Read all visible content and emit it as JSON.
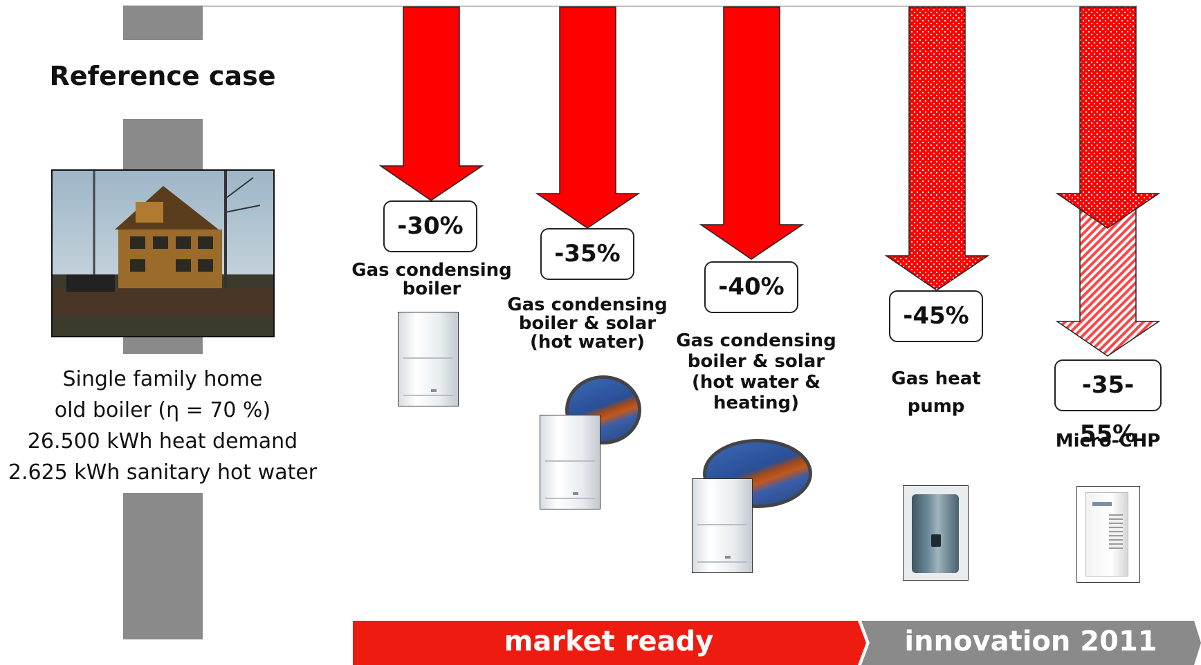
{
  "reference": {
    "title": "Reference case",
    "lines": [
      "Single family home",
      "old boiler (η = 70 %)",
      "26.500 kWh heat demand",
      "2.625 kWh sanitary hot water"
    ]
  },
  "options": [
    {
      "reduction": "-30%",
      "label_lines": [
        "Gas condensing",
        "boiler"
      ],
      "fill": "solid"
    },
    {
      "reduction": "-35%",
      "label_lines": [
        "Gas condensing",
        "boiler & solar",
        "(hot water)"
      ],
      "fill": "solid"
    },
    {
      "reduction": "-40%",
      "label_lines": [
        "Gas condensing",
        "boiler & solar",
        "(hot water &",
        "heating)"
      ],
      "fill": "solid"
    },
    {
      "reduction": "-45%",
      "label_lines": [
        "Gas heat",
        "pump"
      ],
      "fill": "dotted"
    },
    {
      "reduction": "-35-55%",
      "label_lines": [
        "Micro-CHP"
      ],
      "fill": "dotted-hatched"
    }
  ],
  "timeline": {
    "market": "market ready",
    "innovation": "innovation 2011"
  },
  "colors": {
    "accent": "#ff0000",
    "gray": "#8a8a8a"
  }
}
